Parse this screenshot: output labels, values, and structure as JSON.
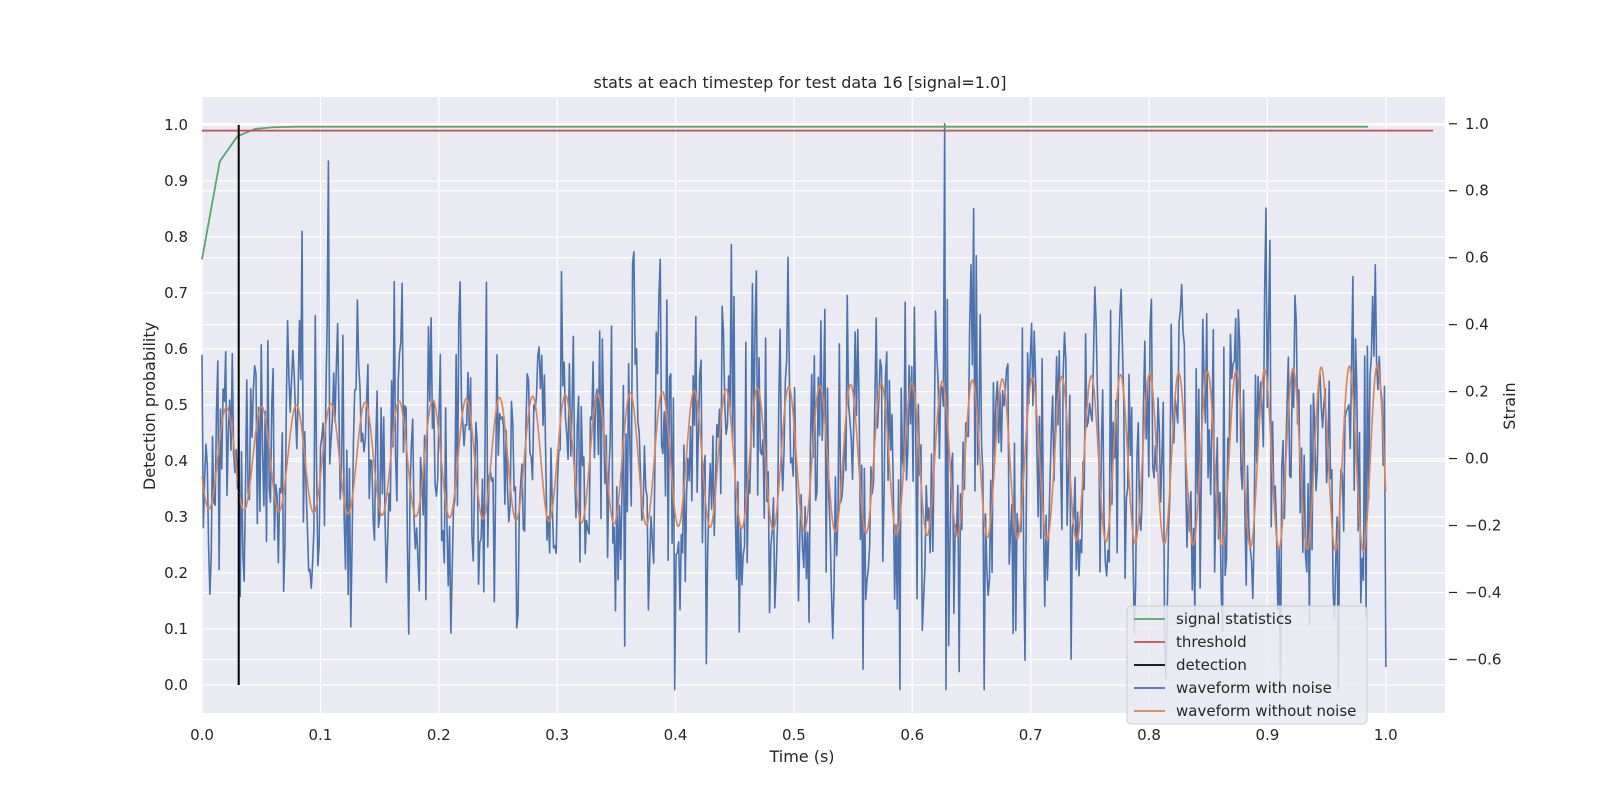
{
  "chart_data": {
    "type": "line",
    "title": "stats at each timestep for test data 16 [signal=1.0]",
    "xlabel": "Time (s)",
    "ylabel": "Detection probability",
    "ylabel_right": "Strain",
    "xlim": [
      0.0,
      1.05
    ],
    "ylim": [
      -0.05,
      1.05
    ],
    "ylim_right": [
      -0.76,
      1.08
    ],
    "x_ticks": [
      "0.0",
      "0.1",
      "0.2",
      "0.3",
      "0.4",
      "0.5",
      "0.6",
      "0.7",
      "0.8",
      "0.9",
      "1.0"
    ],
    "y_ticks": [
      "0.0",
      "0.1",
      "0.2",
      "0.3",
      "0.4",
      "0.5",
      "0.6",
      "0.7",
      "0.8",
      "0.9",
      "1.0"
    ],
    "y_right_ticks": [
      "−0.6",
      "−0.4",
      "−0.2",
      "0.0",
      "0.2",
      "0.4",
      "0.6",
      "0.8",
      "1.0"
    ],
    "grid": true,
    "legend_position": "lower-right",
    "legend": [
      "signal statistics",
      "threshold",
      "detection",
      "waveform with noise",
      "waveform without noise"
    ],
    "colors": {
      "signal statistics": "#55a868",
      "threshold": "#c44e52",
      "detection": "#000000",
      "waveform with noise": "#4c72b0",
      "waveform without noise": "#dd8452",
      "background": "#eaeaf2"
    },
    "series": [
      {
        "name": "signal statistics",
        "axis": "left",
        "x": [
          0.0,
          0.015,
          0.03,
          0.045,
          0.06,
          0.08,
          0.1,
          0.15,
          0.3,
          0.6,
          0.985
        ],
        "y": [
          0.76,
          0.935,
          0.98,
          0.993,
          0.996,
          0.997,
          0.997,
          0.997,
          0.997,
          0.997,
          0.997
        ]
      },
      {
        "name": "threshold",
        "axis": "left",
        "x": [
          0.0,
          1.04
        ],
        "y": [
          0.99,
          0.99
        ]
      },
      {
        "name": "detection",
        "axis": "left",
        "x": [
          0.031,
          0.031
        ],
        "y": [
          0.0,
          1.0
        ]
      },
      {
        "name": "waveform with noise",
        "axis": "right",
        "n_points": 900,
        "x_range": [
          0.0,
          1.0
        ],
        "y_range": [
          -0.7,
          1.0
        ],
        "description_values": {
          "mean": 0.0,
          "peak": 1.0,
          "peak_at": 0.627,
          "min": -0.69,
          "min_at": 0.62
        }
      },
      {
        "name": "waveform without noise",
        "axis": "right",
        "x_range": [
          0.0,
          1.0
        ],
        "model": "chirp",
        "amplitude_start": 0.15,
        "amplitude_end": 0.28,
        "cycles": 38
      }
    ]
  }
}
